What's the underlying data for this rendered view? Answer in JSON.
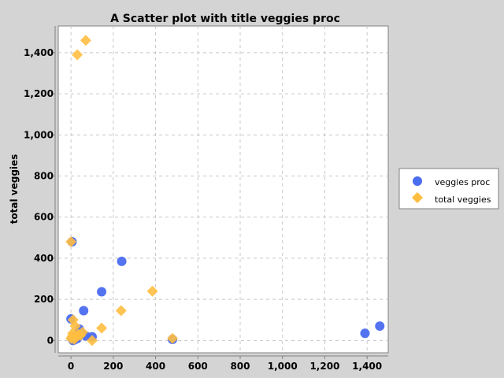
{
  "chart_data": {
    "type": "scatter",
    "title": "A Scatter plot with title veggies proc",
    "xlabel": "",
    "ylabel": "total veggies",
    "xlim": [
      -60,
      1500
    ],
    "ylim": [
      -60,
      1530
    ],
    "x_ticks": [
      0,
      200,
      400,
      600,
      800,
      1000,
      1200,
      1400
    ],
    "x_tick_labels": [
      "0",
      "200",
      "400",
      "600",
      "800",
      "1,000",
      "1,200",
      "1,400"
    ],
    "y_ticks": [
      0,
      200,
      400,
      600,
      800,
      1000,
      1200,
      1400
    ],
    "y_tick_labels": [
      "0",
      "200",
      "400",
      "600",
      "800",
      "1,000",
      "1,200",
      "1,400"
    ],
    "grid": true,
    "legend_position": "right",
    "series": [
      {
        "name": "veggies proc",
        "marker": "circle",
        "color": "#4a6cf0",
        "points": [
          [
            5,
            480
          ],
          [
            240,
            385
          ],
          [
            145,
            237
          ],
          [
            60,
            145
          ],
          [
            0,
            105
          ],
          [
            1390,
            35
          ],
          [
            1460,
            70
          ],
          [
            480,
            5
          ],
          [
            100,
            18
          ],
          [
            70,
            22
          ],
          [
            40,
            55
          ],
          [
            30,
            10
          ],
          [
            20,
            5
          ],
          [
            10,
            0
          ],
          [
            15,
            20
          ],
          [
            50,
            30
          ],
          [
            5,
            10
          ]
        ]
      },
      {
        "name": "total veggies",
        "marker": "diamond",
        "color": "#ffbe40",
        "points": [
          [
            70,
            1460
          ],
          [
            30,
            1390
          ],
          [
            0,
            480
          ],
          [
            385,
            240
          ],
          [
            237,
            145
          ],
          [
            145,
            60
          ],
          [
            100,
            0
          ],
          [
            480,
            10
          ],
          [
            10,
            100
          ],
          [
            20,
            70
          ],
          [
            5,
            20
          ],
          [
            0,
            10
          ],
          [
            35,
            30
          ],
          [
            55,
            40
          ],
          [
            15,
            5
          ],
          [
            25,
            15
          ],
          [
            45,
            25
          ],
          [
            8,
            35
          ]
        ]
      }
    ]
  }
}
